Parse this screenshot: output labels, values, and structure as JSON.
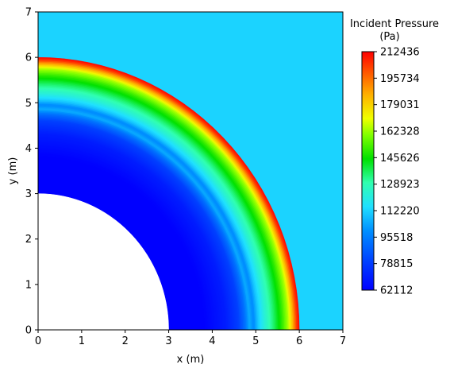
{
  "chart_data": {
    "type": "heatmap",
    "title": "",
    "xlabel": "x (m)",
    "ylabel": "y (m)",
    "xlim": [
      0,
      7
    ],
    "ylim": [
      0,
      7
    ],
    "x_ticks": [
      "0",
      "1",
      "2",
      "3",
      "4",
      "5",
      "6",
      "7"
    ],
    "y_ticks": [
      "0",
      "1",
      "2",
      "3",
      "4",
      "5",
      "6",
      "7"
    ],
    "grid": false,
    "background_value": 112220,
    "inner_radius": 3.0,
    "outer_radius": 6.0,
    "radial_profile": {
      "r": [
        3.0,
        3.8,
        4.3,
        4.6,
        4.75,
        4.85,
        4.95,
        5.05,
        5.2,
        5.4,
        5.6,
        5.75,
        5.85,
        5.93,
        6.0
      ],
      "pressure": [
        62112,
        62112,
        70000,
        80000,
        92000,
        105000,
        98000,
        110000,
        122000,
        135000,
        150000,
        165000,
        185000,
        203000,
        212436
      ]
    },
    "colorbar": {
      "title_line1": "Incident Pressure",
      "title_line2": "(Pa)",
      "min": 62112,
      "max": 212436,
      "colormap": "hsv-like jet (blue-cyan-green-yellow-red)",
      "ticks": [
        "212436",
        "195734",
        "179031",
        "162328",
        "145626",
        "128923",
        "112220",
        "95518",
        "78815",
        "62112"
      ]
    }
  }
}
